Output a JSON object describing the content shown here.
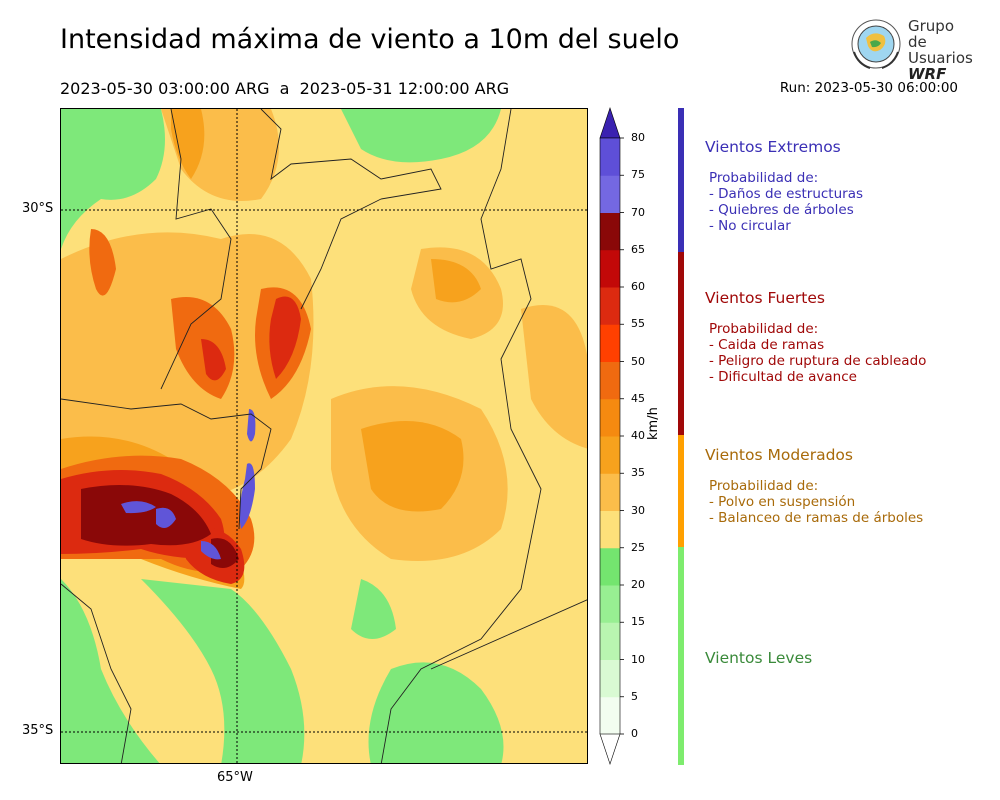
{
  "title": "Intensidad máxima de viento a 10m del suelo",
  "period": "2023-05-30 03:00:00 ARG  a  2023-05-31 12:00:00 ARG",
  "run": "Run: 2023-05-30 06:00:00",
  "logo": {
    "line1": "Grupo de",
    "line2": "Usuarios",
    "line3": "WRF"
  },
  "map": {
    "lat_labels": [
      "30°S",
      "35°S"
    ],
    "lon_labels": [
      "65°W"
    ],
    "colors": {
      "bg": "#fde07a",
      "green": "#7ee87a",
      "orange_light": "#fbbd4a",
      "orange": "#f7a21d",
      "orange_dark": "#f06a10",
      "red": "#dc2a10",
      "dark_red": "#b00808",
      "maroon": "#8a0808",
      "purple": "#6055d8"
    }
  },
  "colorbar": {
    "unit": "km/h",
    "levels": [
      0,
      5,
      10,
      15,
      20,
      25,
      30,
      35,
      40,
      45,
      50,
      55,
      60,
      65,
      70,
      75,
      80
    ],
    "colors": [
      "#f2fdf0",
      "#d9fad3",
      "#b9f5b0",
      "#98ef92",
      "#74e56f",
      "#fde07a",
      "#fbbd4a",
      "#f7a21d",
      "#f58a10",
      "#f06a10",
      "#ff4000",
      "#dc2a10",
      "#c20808",
      "#8a0808",
      "#7468e2",
      "#5e4fd8",
      "#4534c0"
    ],
    "top_color": "#3a22b0"
  },
  "categories": [
    {
      "title": "Vientos Extremos",
      "color": "#3a2fb5",
      "lines": [
        "Probabilidad de:",
        "- Daños de estructuras",
        "- Quiebres de árboles",
        "- No circular"
      ]
    },
    {
      "title": "Vientos Fuertes",
      "color": "#a00808",
      "lines": [
        "Probabilidad de:",
        "- Caida de ramas",
        "- Peligro de ruptura de cableado",
        "- Dificultad de avance"
      ]
    },
    {
      "title": "Vientos Moderados",
      "color": "#a86a0a",
      "lines": [
        "Probabilidad de:",
        "- Polvo en suspensión",
        "- Balanceo de ramas de árboles"
      ]
    },
    {
      "title": "Vientos Leves",
      "color": "#3a8a3a",
      "lines": []
    }
  ],
  "category_bar_colors": [
    "#3a2fb5",
    "#a00808",
    "#ffa000",
    "#7eec6e"
  ]
}
